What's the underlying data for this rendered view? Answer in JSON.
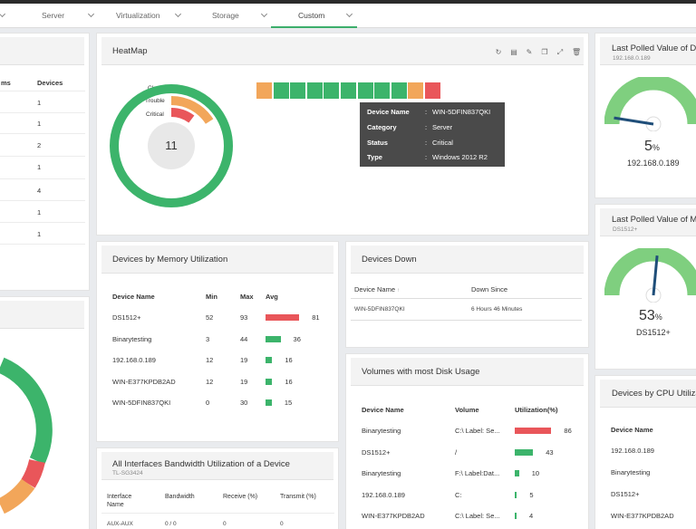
{
  "tabs": [
    {
      "label": "Server"
    },
    {
      "label": "Virtualization"
    },
    {
      "label": "Storage"
    },
    {
      "label": "Custom"
    }
  ],
  "left_table": {
    "header_partial": "ms",
    "header_devices": "Devices",
    "counts": [
      "1",
      "1",
      "2",
      "1",
      "4",
      "1",
      "1"
    ]
  },
  "heatmap": {
    "title": "HeatMap",
    "legend": [
      "Clear",
      "Trouble",
      "Critical"
    ],
    "total": "11",
    "tiles": [
      "orange",
      "green",
      "green",
      "green",
      "green",
      "green",
      "green",
      "green",
      "green",
      "orange",
      "red"
    ],
    "tooltip": {
      "keys": [
        "Device Name",
        "Category",
        "Status",
        "Type"
      ],
      "values": [
        "WIN-5DFIN837QKI",
        "Server",
        "Critical",
        "Windows 2012 R2"
      ]
    }
  },
  "memory": {
    "title": "Devices by Memory Utilization",
    "headers": {
      "name": "Device Name",
      "min": "Min",
      "max": "Max",
      "avg": "Avg"
    },
    "rows": [
      {
        "name": "DS1512+",
        "min": "52",
        "max": "93",
        "avg": "81",
        "color": "red",
        "avg_value": 81
      },
      {
        "name": "Binarytesting",
        "min": "3",
        "max": "44",
        "avg": "36",
        "color": "green",
        "avg_value": 36
      },
      {
        "name": "192.168.0.189",
        "min": "12",
        "max": "19",
        "avg": "16",
        "color": "green",
        "avg_value": 16
      },
      {
        "name": "WIN-E377KPDB2AD",
        "min": "12",
        "max": "19",
        "avg": "16",
        "color": "green",
        "avg_value": 16
      },
      {
        "name": "WIN-5DFIN837QKI",
        "min": "0",
        "max": "30",
        "avg": "15",
        "color": "green",
        "avg_value": 15
      }
    ]
  },
  "devices_down": {
    "title": "Devices Down",
    "headers": {
      "name": "Device Name",
      "sort": "↑",
      "since": "Down Since"
    },
    "rows": [
      {
        "name": "WIN-5DFIN837QKI",
        "since": "6 Hours 46 Minutes"
      }
    ]
  },
  "disk": {
    "title": "Volumes with most Disk Usage",
    "headers": {
      "name": "Device Name",
      "volume": "Volume",
      "util": "Utilization(%)"
    },
    "rows": [
      {
        "name": "Binarytesting",
        "volume": "C:\\ Label: Se...",
        "util": "86",
        "color": "red",
        "util_value": 86
      },
      {
        "name": "DS1512+",
        "volume": "/",
        "util": "43",
        "color": "green",
        "util_value": 43
      },
      {
        "name": "Binarytesting",
        "volume": "F:\\ Label:Dat...",
        "util": "10",
        "color": "green",
        "util_value": 10
      },
      {
        "name": "192.168.0.189",
        "volume": "C:",
        "util": "5",
        "color": "green",
        "util_value": 5
      },
      {
        "name": "WIN-E377KPDB2AD",
        "volume": "C:\\ Label: Se...",
        "util": "4",
        "color": "green",
        "util_value": 4
      }
    ]
  },
  "bandwidth": {
    "title": "All Interfaces Bandwidth Utilization of a Device",
    "subtitle": "TL-SG3424",
    "headers": {
      "iface_1": "Interface",
      "iface_2": "Name",
      "bw": "Bandwidth",
      "rx": "Receive (%)",
      "tx": "Transmit (%)"
    },
    "row": {
      "iface": "AUX-AUX",
      "bw": "0 / 0",
      "rx": "0",
      "tx": "0"
    }
  },
  "polled1": {
    "title": "Last Polled Value of Di",
    "subtitle": "192.168.0.189",
    "value": "5",
    "unit": "%",
    "device": "192.168.0.189",
    "gauge_value": 5
  },
  "polled2": {
    "title": "Last Polled Value of Me",
    "subtitle": "DS1512+",
    "value": "53",
    "unit": "%",
    "device": "DS1512+",
    "gauge_value": 53
  },
  "cpu": {
    "title": "Devices by CPU Utiliza",
    "header_name": "Device Name",
    "rows": [
      "192.168.0.189",
      "Binarytesting",
      "DS1512+",
      "WIN-E377KPDB2AD"
    ]
  },
  "colors": {
    "green": "#3cb46b",
    "red": "#e9565a",
    "orange": "#f2a65a",
    "gauge_light": "#7fcf7f",
    "needle": "#1f4e79"
  }
}
